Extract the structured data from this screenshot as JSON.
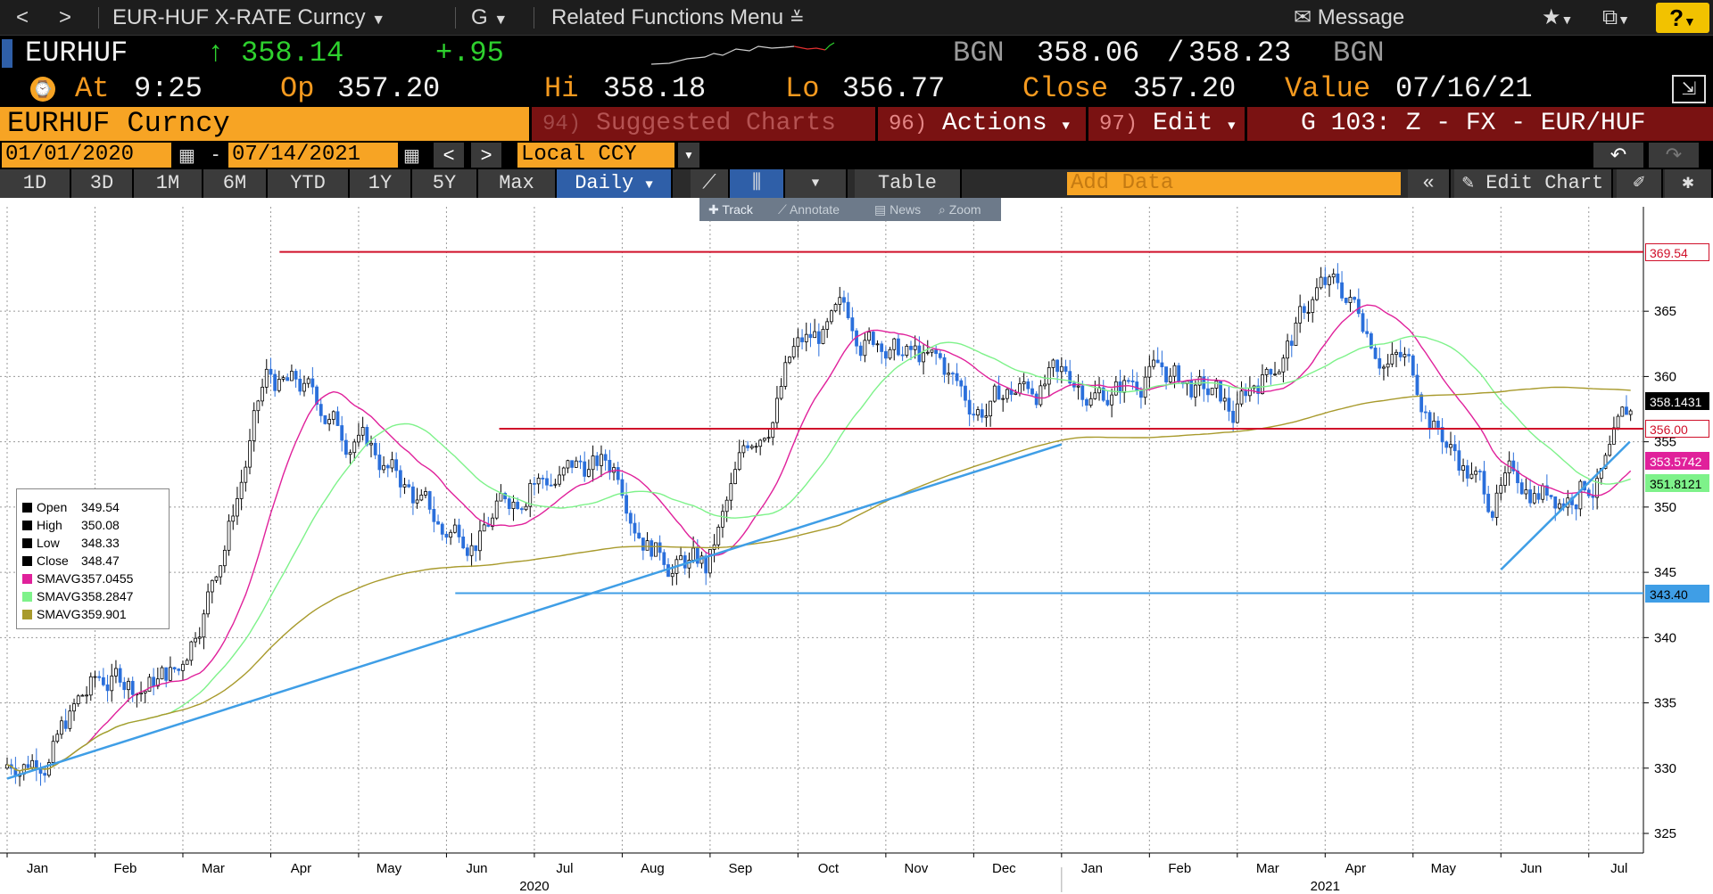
{
  "titlebar": {
    "back": "<",
    "forward": ">",
    "security_menu": "EUR-HUF X-RATE Curncy",
    "function_menu": "G",
    "related_menu": "Related Functions Menu",
    "message": "Message",
    "help": "?"
  },
  "quote": {
    "ticker": "EURHUF",
    "last_arrow": "↑",
    "last": "358.14",
    "change": "+.95",
    "source": "BGN",
    "bid": "358.06",
    "slash": "/",
    "ask": "358.23",
    "source2": "BGN",
    "at_label": "At",
    "at_time": "9:25",
    "open_label": "Op",
    "open": "357.20",
    "high_label": "Hi",
    "high": "358.18",
    "low_label": "Lo",
    "low": "356.77",
    "close_label": "Close",
    "close": "357.20",
    "value_label": "Value",
    "value_date": "07/16/21"
  },
  "secbar": {
    "security": "EURHUF Curncy",
    "suggested_num": "94)",
    "suggested": "Suggested Charts",
    "actions_num": "96)",
    "actions": "Actions",
    "edit_num": "97)",
    "edit": "Edit",
    "template": "G 103: Z - FX - EUR/HUF"
  },
  "daterow": {
    "start_date": "01/01/2020",
    "dash": "-",
    "end_date": "07/14/2021",
    "prev": "<",
    "next": ">",
    "currency": "Local CCY"
  },
  "toolbar": {
    "periods": [
      "1D",
      "3D",
      "1M",
      "6M",
      "YTD",
      "1Y",
      "5Y",
      "Max"
    ],
    "frequency": "Daily",
    "table": "Table",
    "add_data_placeholder": "Add Data",
    "edit_chart": "Edit Chart"
  },
  "chart_tools": {
    "track": "Track",
    "annotate": "Annotate",
    "news": "News",
    "zoom": "Zoom"
  },
  "legend": [
    {
      "name": "Open",
      "value": "349.54",
      "color": "#000000"
    },
    {
      "name": "High",
      "value": "350.08",
      "color": "#000000"
    },
    {
      "name": "Low",
      "value": "348.33",
      "color": "#000000"
    },
    {
      "name": "Close",
      "value": "348.47",
      "color": "#000000"
    },
    {
      "name": "SMAVG",
      "value": "357.0455",
      "color": "#e0219b"
    },
    {
      "name": "SMAVG",
      "value": "358.2847",
      "color": "#7ef28a"
    },
    {
      "name": "SMAVG",
      "value": "359.901",
      "color": "#a89a2c"
    }
  ],
  "tags": [
    {
      "value": "369.54",
      "bg": "#ffffff",
      "fg": "#d0102a",
      "border": "#d0102a"
    },
    {
      "value": "358.1431",
      "bg": "#000000",
      "fg": "#ffffff",
      "border": "#000000"
    },
    {
      "value": "356.00",
      "bg": "#ffffff",
      "fg": "#d0102a",
      "border": "#d0102a"
    },
    {
      "value": "353.5742",
      "bg": "#e0219b",
      "fg": "#ffffff",
      "border": "#e0219b"
    },
    {
      "value": "351.8121",
      "bg": "#7ef28a",
      "fg": "#000000",
      "border": "#7ef28a"
    },
    {
      "value": "343.40",
      "bg": "#3f9ee6",
      "fg": "#000000",
      "border": "#3f9ee6"
    }
  ],
  "chart_data": {
    "type": "candlestick",
    "title": "",
    "y_axis_ticks": [
      325,
      330,
      335,
      340,
      345,
      350,
      355,
      360,
      365
    ],
    "ylim": [
      323.5,
      373
    ],
    "x_month_labels": [
      "Jan",
      "Feb",
      "Mar",
      "Apr",
      "May",
      "Jun",
      "Jul",
      "Aug",
      "Sep",
      "Oct",
      "Nov",
      "Dec",
      "Jan",
      "Feb",
      "Mar",
      "Apr",
      "May",
      "Jun",
      "Jul"
    ],
    "x_year_labels": [
      "2020",
      "2021"
    ],
    "grid": true,
    "date_range": [
      "01/01/2020",
      "07/14/2021"
    ],
    "approx_monthly_close": [
      {
        "month": "2020-01",
        "close": 336.0
      },
      {
        "month": "2020-02",
        "close": 337.5
      },
      {
        "month": "2020-03",
        "close": 360.0
      },
      {
        "month": "2020-04",
        "close": 355.0
      },
      {
        "month": "2020-05",
        "close": 348.0
      },
      {
        "month": "2020-06",
        "close": 352.0
      },
      {
        "month": "2020-07",
        "close": 353.0
      },
      {
        "month": "2020-08",
        "close": 345.5
      },
      {
        "month": "2020-09",
        "close": 362.0
      },
      {
        "month": "2020-10",
        "close": 363.0
      },
      {
        "month": "2020-11",
        "close": 358.0
      },
      {
        "month": "2020-12",
        "close": 360.0
      },
      {
        "month": "2021-01",
        "close": 360.0
      },
      {
        "month": "2021-02",
        "close": 357.0
      },
      {
        "month": "2021-03",
        "close": 367.0
      },
      {
        "month": "2021-04",
        "close": 361.0
      },
      {
        "month": "2021-05",
        "close": 350.0
      },
      {
        "month": "2021-06",
        "close": 352.0
      },
      {
        "month": "2021-07",
        "close": 358.14
      }
    ],
    "horizontal_lines": [
      {
        "value": 369.54,
        "color": "#d0102a"
      },
      {
        "value": 356.0,
        "color": "#d0102a"
      },
      {
        "value": 343.4,
        "color": "#3f9ee6"
      }
    ],
    "trend_lines": [
      {
        "from": [
          "2020-01-01",
          329.2
        ],
        "to": [
          "2021-01-01",
          354.8
        ],
        "color": "#3f9ee6"
      },
      {
        "from": [
          "2021-06-01",
          345.2
        ],
        "to": [
          "2021-07-15",
          355.0
        ],
        "color": "#3f9ee6"
      }
    ],
    "series": [
      {
        "name": "SMAVG",
        "color": "#e0219b"
      },
      {
        "name": "SMAVG",
        "color": "#7ef28a"
      },
      {
        "name": "SMAVG",
        "color": "#a89a2c"
      }
    ]
  }
}
